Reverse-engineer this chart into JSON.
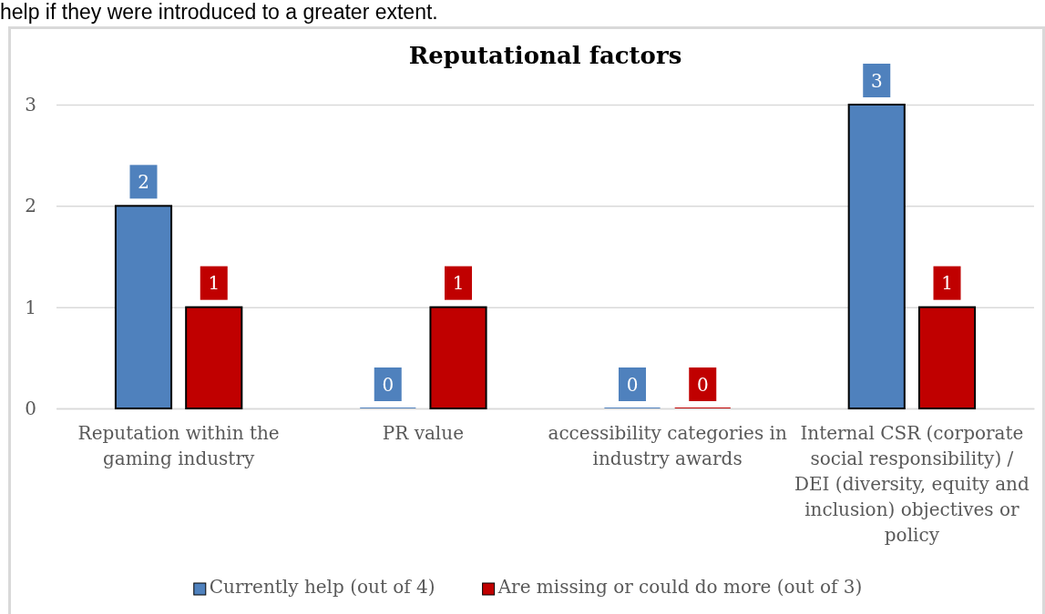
{
  "chart_data": {
    "type": "bar",
    "title": "Reputational factors",
    "annotations": [
      "help if they were introduced to a greater extent."
    ],
    "categories": [
      "Reputation within the gaming industry",
      "PR value",
      "accessibility categories in industry awards",
      "Internal CSR (corporate social responsibility) / DEI (diversity, equity and inclusion) objectives or policy"
    ],
    "series": [
      {
        "name": "Currently help (out of 4)",
        "color": "#4f81bd",
        "values": [
          2,
          0,
          0,
          3
        ]
      },
      {
        "name": "Are missing or could do more (out of 3)",
        "color": "#c00000",
        "values": [
          1,
          1,
          0,
          1
        ]
      }
    ],
    "ylim": [
      0,
      3
    ],
    "yticks": [
      0,
      1,
      2,
      3
    ],
    "grid": "y",
    "legend": "bottom",
    "data_labels": true
  }
}
